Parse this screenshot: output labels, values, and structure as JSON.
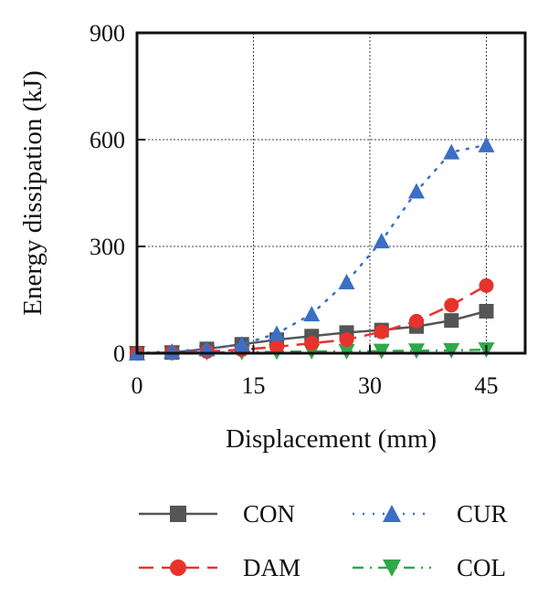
{
  "chart_data": {
    "type": "line",
    "title": "",
    "xlabel": "Displacement (mm)",
    "ylabel": "Energy dissipation (kJ)",
    "xlim": [
      0,
      50
    ],
    "ylim": [
      0,
      900
    ],
    "xticks": [
      0,
      15,
      30,
      45
    ],
    "yticks": [
      0,
      300,
      600,
      900
    ],
    "grid": true,
    "legend_position": "bottom",
    "series": [
      {
        "name": "CON",
        "color": "#555555",
        "marker": "square",
        "line_style": "solid",
        "x": [
          0,
          4.5,
          9,
          13.5,
          18,
          22.5,
          27,
          31.5,
          36,
          40.5,
          45
        ],
        "y": [
          0,
          2,
          12,
          25,
          38,
          48,
          58,
          65,
          75,
          92,
          118
        ]
      },
      {
        "name": "DAM",
        "color": "#e8322d",
        "marker": "circle",
        "line_style": "dashed",
        "x": [
          0,
          4.5,
          9,
          13.5,
          18,
          22.5,
          27,
          31.5,
          36,
          40.5,
          45
        ],
        "y": [
          0,
          1,
          5,
          10,
          18,
          28,
          38,
          60,
          90,
          135,
          190
        ]
      },
      {
        "name": "CUR",
        "color": "#3b6fc4",
        "marker": "triangle-up",
        "line_style": "dotted",
        "x": [
          0,
          4.5,
          9,
          13.5,
          18,
          22.5,
          27,
          31.5,
          36,
          40.5,
          45
        ],
        "y": [
          0,
          5,
          12,
          25,
          55,
          110,
          200,
          315,
          455,
          565,
          585
        ]
      },
      {
        "name": "COL",
        "color": "#2ea84a",
        "marker": "triangle-down",
        "line_style": "dash-dot",
        "x": [
          0,
          4.5,
          9,
          13.5,
          18,
          22.5,
          27,
          31.5,
          36,
          40.5,
          45
        ],
        "y": [
          0,
          1,
          2,
          3,
          4,
          5,
          5,
          6,
          7,
          8,
          10
        ]
      }
    ]
  }
}
